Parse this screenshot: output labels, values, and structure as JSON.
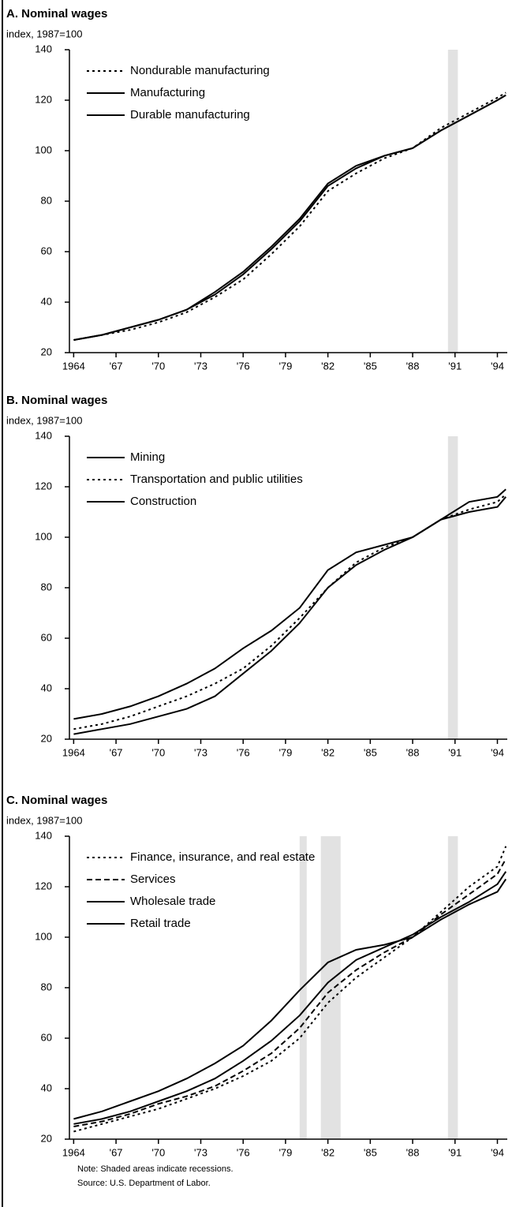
{
  "chart_data": [
    {
      "type": "line",
      "title": "A. Nominal wages",
      "subtitle": "index, 1987=100",
      "x": [
        1964,
        1966,
        1968,
        1970,
        1972,
        1974,
        1976,
        1978,
        1980,
        1982,
        1984,
        1986,
        1988,
        1990,
        1992,
        1994,
        1994.6
      ],
      "series": [
        {
          "name": "Nondurable manufacturing",
          "color": "#000000",
          "style": "dotted",
          "values": [
            25,
            27,
            29,
            32,
            36,
            42,
            49,
            59,
            70,
            84,
            91,
            97,
            101,
            109,
            115,
            121,
            123
          ]
        },
        {
          "name": "Manufacturing",
          "color": "#000000",
          "style": "solid",
          "values": [
            25,
            27,
            30,
            33,
            37,
            43,
            51,
            61,
            72,
            86,
            93,
            98,
            101,
            108,
            114,
            120,
            122
          ]
        },
        {
          "name": "Durable manufacturing",
          "color": "#000000",
          "style": "solid",
          "values": [
            25,
            27,
            30,
            33,
            37,
            44,
            52,
            62,
            73,
            87,
            94,
            98,
            101,
            108,
            114,
            120,
            122
          ]
        }
      ],
      "recessions": [
        [
          1990.5,
          1991.2
        ]
      ],
      "xlim": [
        1963.7,
        1994.7
      ],
      "ylim": [
        20,
        140
      ],
      "yticks": [
        20,
        40,
        60,
        80,
        100,
        120,
        140
      ],
      "xticks": [
        1964,
        {
          "value": 1967,
          "label": "'67"
        },
        {
          "value": 1970,
          "label": "'70"
        },
        {
          "value": 1973,
          "label": "'73"
        },
        {
          "value": 1976,
          "label": "'76"
        },
        {
          "value": 1979,
          "label": "'79"
        },
        {
          "value": 1982,
          "label": "'82"
        },
        {
          "value": 1985,
          "label": "'85"
        },
        {
          "value": 1988,
          "label": "'88"
        },
        {
          "value": 1991,
          "label": "'91"
        },
        {
          "value": 1994,
          "label": "'94"
        }
      ]
    },
    {
      "type": "line",
      "title": "B. Nominal wages",
      "subtitle": "index, 1987=100",
      "x": [
        1964,
        1966,
        1968,
        1970,
        1972,
        1974,
        1976,
        1978,
        1980,
        1982,
        1984,
        1986,
        1988,
        1990,
        1992,
        1994,
        1994.6
      ],
      "series": [
        {
          "name": "Mining",
          "color": "#000000",
          "style": "solid",
          "values": [
            28,
            30,
            33,
            37,
            42,
            48,
            56,
            63,
            72,
            87,
            94,
            97,
            100,
            107,
            114,
            116,
            119
          ]
        },
        {
          "name": "Transportation and public utilities",
          "color": "#000000",
          "style": "dotted",
          "values": [
            24,
            26,
            29,
            33,
            37,
            42,
            48,
            57,
            68,
            80,
            90,
            96,
            100,
            107,
            111,
            114,
            117
          ]
        },
        {
          "name": "Construction",
          "color": "#000000",
          "style": "solid",
          "values": [
            22,
            24,
            26,
            29,
            32,
            37,
            46,
            55,
            66,
            80,
            89,
            95,
            100,
            107,
            110,
            112,
            116
          ]
        }
      ],
      "recessions": [
        [
          1990.5,
          1991.2
        ]
      ],
      "xlim": [
        1963.7,
        1994.7
      ],
      "ylim": [
        20,
        140
      ],
      "yticks": [
        20,
        40,
        60,
        80,
        100,
        120,
        140
      ],
      "xticks": [
        1964,
        {
          "value": 1967,
          "label": "'67"
        },
        {
          "value": 1970,
          "label": "'70"
        },
        {
          "value": 1973,
          "label": "'73"
        },
        {
          "value": 1976,
          "label": "'76"
        },
        {
          "value": 1979,
          "label": "'79"
        },
        {
          "value": 1982,
          "label": "'82"
        },
        {
          "value": 1985,
          "label": "'85"
        },
        {
          "value": 1988,
          "label": "'88"
        },
        {
          "value": 1991,
          "label": "'91"
        },
        {
          "value": 1994,
          "label": "'94"
        }
      ]
    },
    {
      "type": "line",
      "title": "C. Nominal wages",
      "subtitle": "index, 1987=100",
      "x": [
        1964,
        1966,
        1968,
        1970,
        1972,
        1974,
        1976,
        1978,
        1980,
        1982,
        1984,
        1986,
        1988,
        1990,
        1992,
        1994,
        1994.6
      ],
      "series": [
        {
          "name": "Finance, insurance, and real estate",
          "color": "#000000",
          "style": "dotted",
          "values": [
            23,
            26,
            29,
            32,
            36,
            40,
            45,
            51,
            60,
            74,
            84,
            92,
            100,
            110,
            120,
            128,
            136
          ]
        },
        {
          "name": "Services",
          "color": "#000000",
          "style": "dashed",
          "values": [
            25,
            27,
            30,
            34,
            37,
            41,
            47,
            54,
            64,
            78,
            87,
            94,
            100,
            109,
            117,
            125,
            131
          ]
        },
        {
          "name": "Wholesale trade",
          "color": "#000000",
          "style": "solid",
          "values": [
            26,
            28,
            31,
            35,
            39,
            44,
            51,
            59,
            69,
            82,
            91,
            96,
            101,
            108,
            114,
            121,
            126
          ]
        },
        {
          "name": "Retail trade",
          "color": "#000000",
          "style": "solid",
          "values": [
            28,
            31,
            35,
            39,
            44,
            50,
            57,
            67,
            79,
            90,
            95,
            97,
            100,
            107,
            113,
            118,
            123
          ]
        }
      ],
      "recessions": [
        [
          1980.0,
          1980.5
        ],
        [
          1981.5,
          1982.9
        ],
        [
          1990.5,
          1991.2
        ]
      ],
      "xlim": [
        1963.7,
        1994.7
      ],
      "ylim": [
        20,
        140
      ],
      "yticks": [
        20,
        40,
        60,
        80,
        100,
        120,
        140
      ],
      "xticks": [
        1964,
        {
          "value": 1967,
          "label": "'67"
        },
        {
          "value": 1970,
          "label": "'70"
        },
        {
          "value": 1973,
          "label": "'73"
        },
        {
          "value": 1976,
          "label": "'76"
        },
        {
          "value": 1979,
          "label": "'79"
        },
        {
          "value": 1982,
          "label": "'82"
        },
        {
          "value": 1985,
          "label": "'85"
        },
        {
          "value": 1988,
          "label": "'88"
        },
        {
          "value": 1991,
          "label": "'91"
        },
        {
          "value": 1994,
          "label": "'94"
        }
      ],
      "note": "Note: Shaded areas indicate recessions.",
      "source": "Source: U.S. Department of Labor."
    }
  ]
}
